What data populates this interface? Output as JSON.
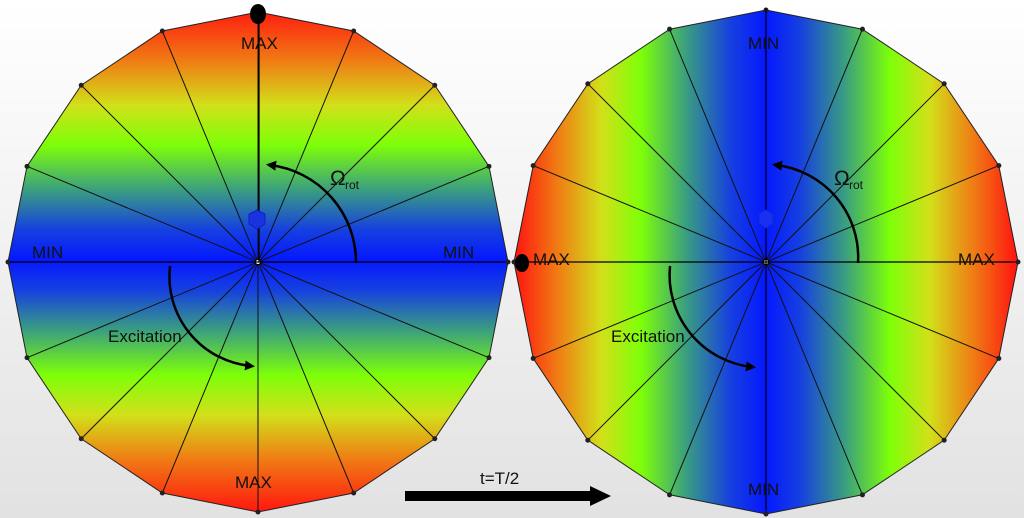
{
  "left_disk": {
    "top_label": "MAX",
    "bottom_label": "MAX",
    "left_label": "MIN",
    "right_label": "MIN",
    "rotation_label": "Ω",
    "rotation_sub": "rot",
    "excitation_label": "Excitation"
  },
  "right_disk": {
    "top_label": "MIN",
    "bottom_label": "MIN",
    "left_label": "MAX",
    "right_label": "MAX",
    "rotation_label": "Ω",
    "rotation_sub": "rot",
    "excitation_label": "Excitation"
  },
  "time_arrow": {
    "label": "t=T/2"
  },
  "colors": {
    "max": "#e8251a",
    "mid": "#7dff08",
    "min": "#0a1eff"
  }
}
